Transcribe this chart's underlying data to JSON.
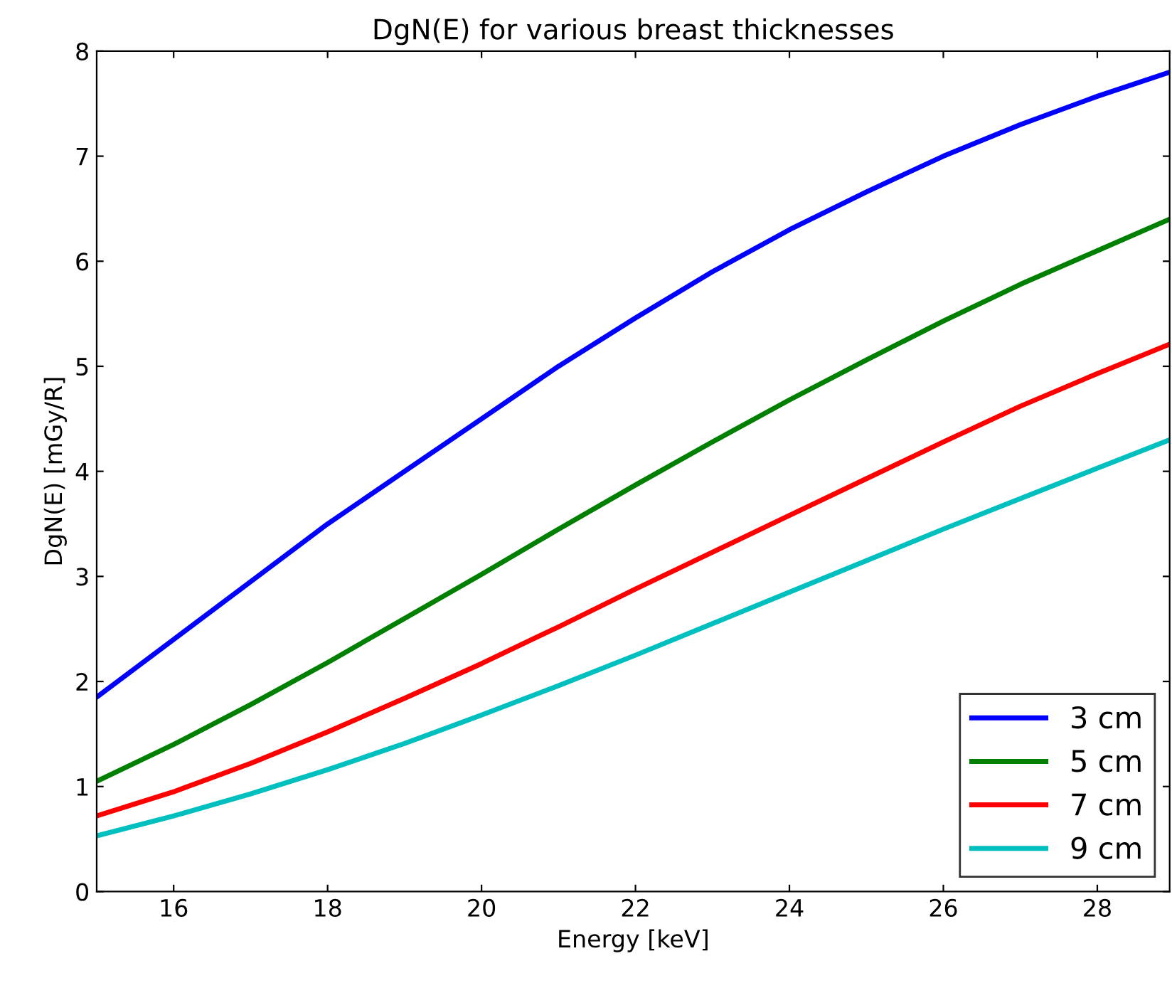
{
  "chart_data": {
    "type": "line",
    "title": "DgN(E) for various breast thicknesses",
    "xlabel": "Energy [keV]",
    "ylabel": "DgN(E) [mGy/R]",
    "x": [
      15,
      16,
      17,
      18,
      19,
      20,
      21,
      22,
      23,
      24,
      25,
      26,
      27,
      28,
      28.94
    ],
    "series": [
      {
        "name": "3 cm",
        "color": "#0000ff",
        "values": [
          1.85,
          2.4,
          2.95,
          3.5,
          4.0,
          4.5,
          5.0,
          5.46,
          5.9,
          6.3,
          6.66,
          7.0,
          7.3,
          7.57,
          7.8
        ]
      },
      {
        "name": "5 cm",
        "color": "#008000",
        "values": [
          1.05,
          1.4,
          1.78,
          2.18,
          2.6,
          3.02,
          3.45,
          3.87,
          4.28,
          4.68,
          5.06,
          5.43,
          5.78,
          6.1,
          6.4
        ]
      },
      {
        "name": "7 cm",
        "color": "#ff0000",
        "values": [
          0.72,
          0.95,
          1.22,
          1.52,
          1.84,
          2.17,
          2.52,
          2.88,
          3.23,
          3.58,
          3.93,
          4.28,
          4.62,
          4.93,
          5.21
        ]
      },
      {
        "name": "9 cm",
        "color": "#00bfbf",
        "values": [
          0.53,
          0.72,
          0.93,
          1.16,
          1.41,
          1.68,
          1.96,
          2.25,
          2.55,
          2.85,
          3.15,
          3.45,
          3.74,
          4.03,
          4.3
        ]
      }
    ],
    "xlim": [
      15,
      28.94
    ],
    "xticks": [
      16,
      18,
      20,
      22,
      24,
      26,
      28
    ],
    "ylim": [
      0,
      8
    ],
    "yticks": [
      0,
      1,
      2,
      3,
      4,
      5,
      6,
      7,
      8
    ],
    "grid": false,
    "legend": "lower right",
    "marker": "none",
    "line_style": "solid"
  }
}
